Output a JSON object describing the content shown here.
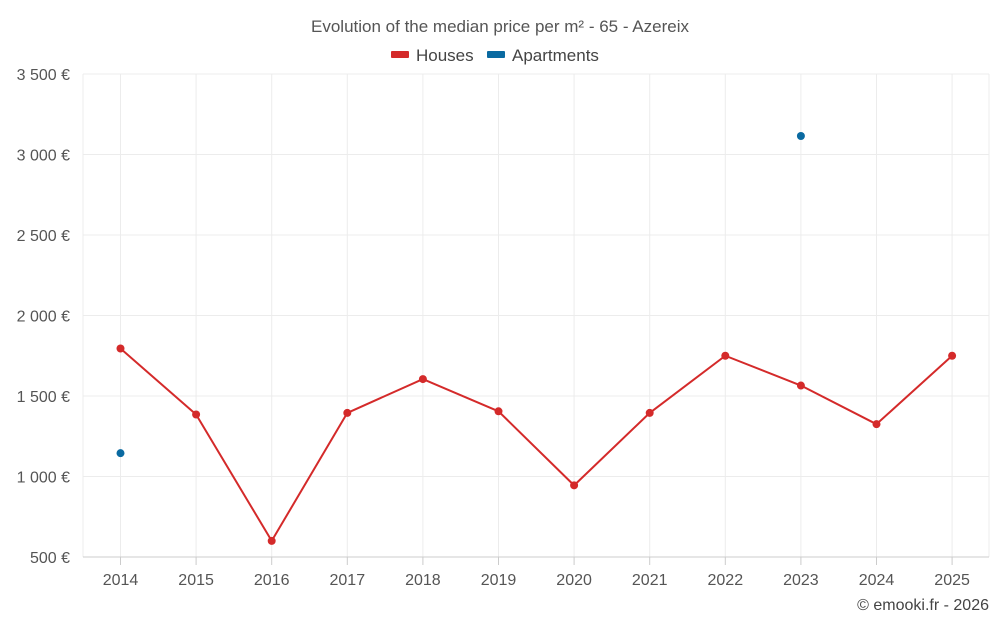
{
  "chart_data": {
    "type": "line",
    "title": "Evolution of the median price per m² - 65 - Azereix",
    "categories": [
      "2014",
      "2015",
      "2016",
      "2017",
      "2018",
      "2019",
      "2020",
      "2021",
      "2022",
      "2023",
      "2024",
      "2025"
    ],
    "series": [
      {
        "name": "Houses",
        "color": "#d42a2a",
        "values": [
          1795,
          1385,
          600,
          1395,
          1605,
          1405,
          945,
          1395,
          1750,
          1565,
          1325,
          1750
        ]
      },
      {
        "name": "Apartments",
        "color": "#0a6aa1",
        "values": [
          1145,
          null,
          null,
          null,
          null,
          null,
          null,
          null,
          null,
          3115,
          null,
          null
        ]
      }
    ],
    "ylim": [
      500,
      3500
    ],
    "yticks": [
      500,
      1000,
      1500,
      2000,
      2500,
      3000,
      3500
    ],
    "ytick_labels": [
      "500 €",
      "1 000 €",
      "1 500 €",
      "2 000 €",
      "2 500 €",
      "3 000 €",
      "3 500 €"
    ],
    "grid": true,
    "legend_position": "top-center",
    "xlabel": "",
    "ylabel": ""
  },
  "credit": "© emooki.fr - 2026"
}
